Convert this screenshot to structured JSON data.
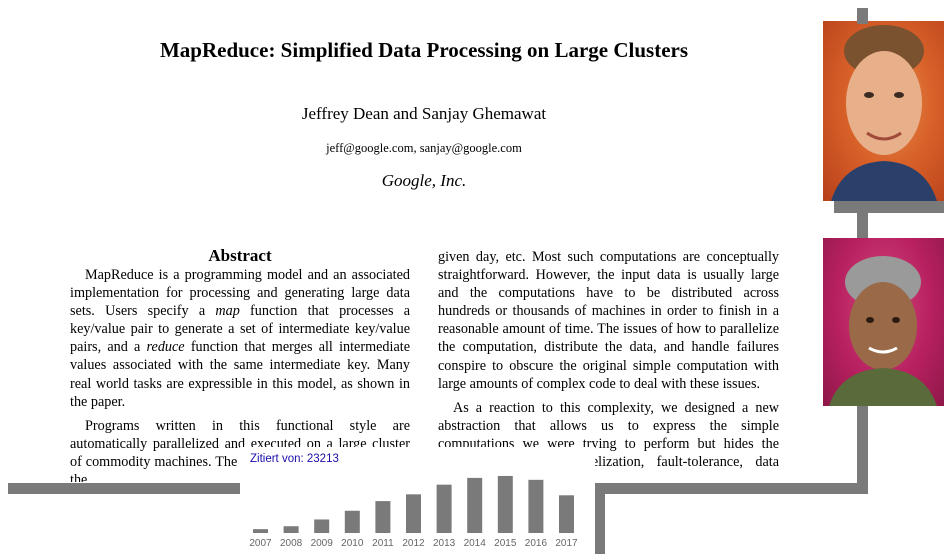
{
  "paper": {
    "title": "MapReduce: Simplified Data Processing on Large Clusters",
    "authors": "Jeffrey Dean and Sanjay Ghemawat",
    "emails": "jeff@google.com, sanjay@google.com",
    "affiliation": "Google, Inc.",
    "abstract_heading": "Abstract"
  },
  "left_column": {
    "p1_a": "MapReduce is a programming model and an associated implementation for processing and generating large data sets. Users specify a ",
    "p1_b": "map",
    "p1_c": " function that processes a key/value pair to generate a set of intermediate key/value pairs, and a ",
    "p1_d": "reduce",
    "p1_e": " function that merges all intermediate values associated with the same intermediate key. Many real world tasks are expressible in this model, as shown in the paper.",
    "p2": "Programs written in this functional style are automatically parallelized and executed on a large cluster of commodity machines. The run-time system takes care of the"
  },
  "right_column": {
    "p1": "given day, etc. Most such computations are conceptually straightforward. However, the input data is usually large and the computations have to be distributed across hundreds or thousands of machines in order to finish in a reasonable amount of time. The issues of how to parallelize the computation, distribute the data, and handle failures conspire to obscure the original simple computation with large amounts of complex code to deal with these issues.",
    "p2": "As a reaction to this complexity, we designed a new abstraction that allows us to express the simple computations we were trying to perform but hides the messy details of parallelization, fault-tolerance, data distribution"
  },
  "photos": {
    "top": "author-photo-1",
    "bottom": "author-photo-2"
  },
  "citations": {
    "label": "Zitiert von: 23213"
  },
  "chart_data": {
    "type": "bar",
    "title": "",
    "categories": [
      "2007",
      "2008",
      "2009",
      "2010",
      "2011",
      "2012",
      "2013",
      "2014",
      "2015",
      "2016",
      "2017"
    ],
    "values": [
      4,
      7,
      14,
      23,
      33,
      40,
      50,
      57,
      59,
      55,
      39
    ],
    "bar_color": "#7a7a7a",
    "xlabel": "",
    "ylabel": ""
  }
}
